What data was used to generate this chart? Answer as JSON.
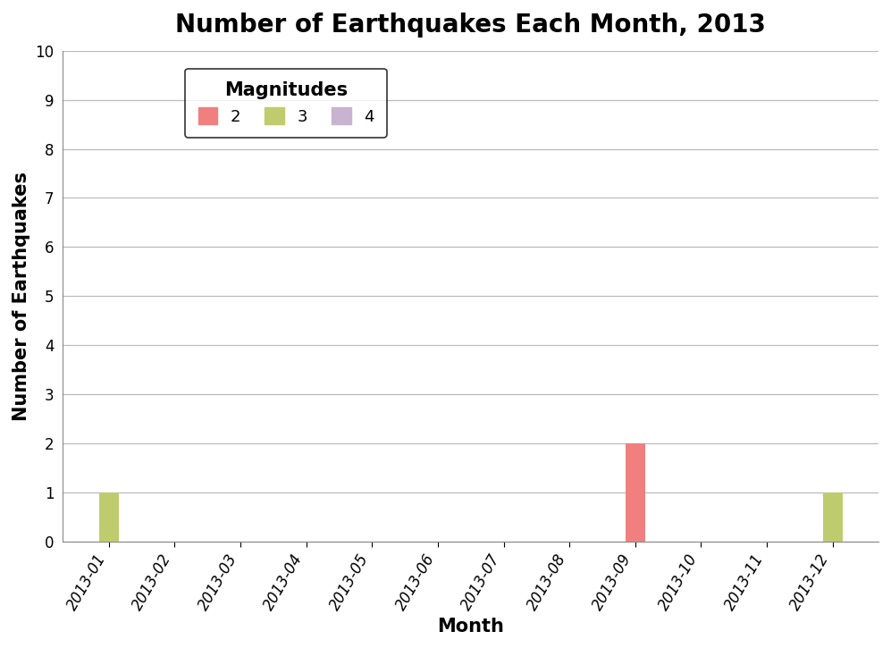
{
  "title": "Number of Earthquakes Each Month, 2013",
  "xlabel": "Month",
  "ylabel": "Number of Earthquakes",
  "months": [
    "2013-01",
    "2013-02",
    "2013-03",
    "2013-04",
    "2013-05",
    "2013-06",
    "2013-07",
    "2013-08",
    "2013-09",
    "2013-10",
    "2013-11",
    "2013-12"
  ],
  "mag2": [
    0,
    0,
    0,
    0,
    0,
    0,
    0,
    0,
    2,
    0,
    0,
    0
  ],
  "mag3": [
    1,
    0,
    0,
    0,
    0,
    0,
    0,
    0,
    0,
    0,
    0,
    1
  ],
  "mag4": [
    0,
    0,
    0,
    0,
    0,
    0,
    0,
    0,
    0,
    0,
    0,
    0
  ],
  "color_mag2": "#F08080",
  "color_mag3": "#BFCC6E",
  "color_mag4": "#C8B4D0",
  "ylim": [
    0,
    10
  ],
  "yticks": [
    0,
    1,
    2,
    3,
    4,
    5,
    6,
    7,
    8,
    9,
    10
  ],
  "legend_title": "Magnitudes",
  "legend_labels": [
    "2",
    "3",
    "4"
  ],
  "title_fontsize": 20,
  "axis_label_fontsize": 15,
  "tick_fontsize": 12,
  "legend_fontsize": 13,
  "bar_width": 0.3,
  "background_color": "#FFFFFF",
  "plot_bg_color": "#FFFFFF",
  "grid_color": "#BBBBBB",
  "spine_color": "#888888"
}
